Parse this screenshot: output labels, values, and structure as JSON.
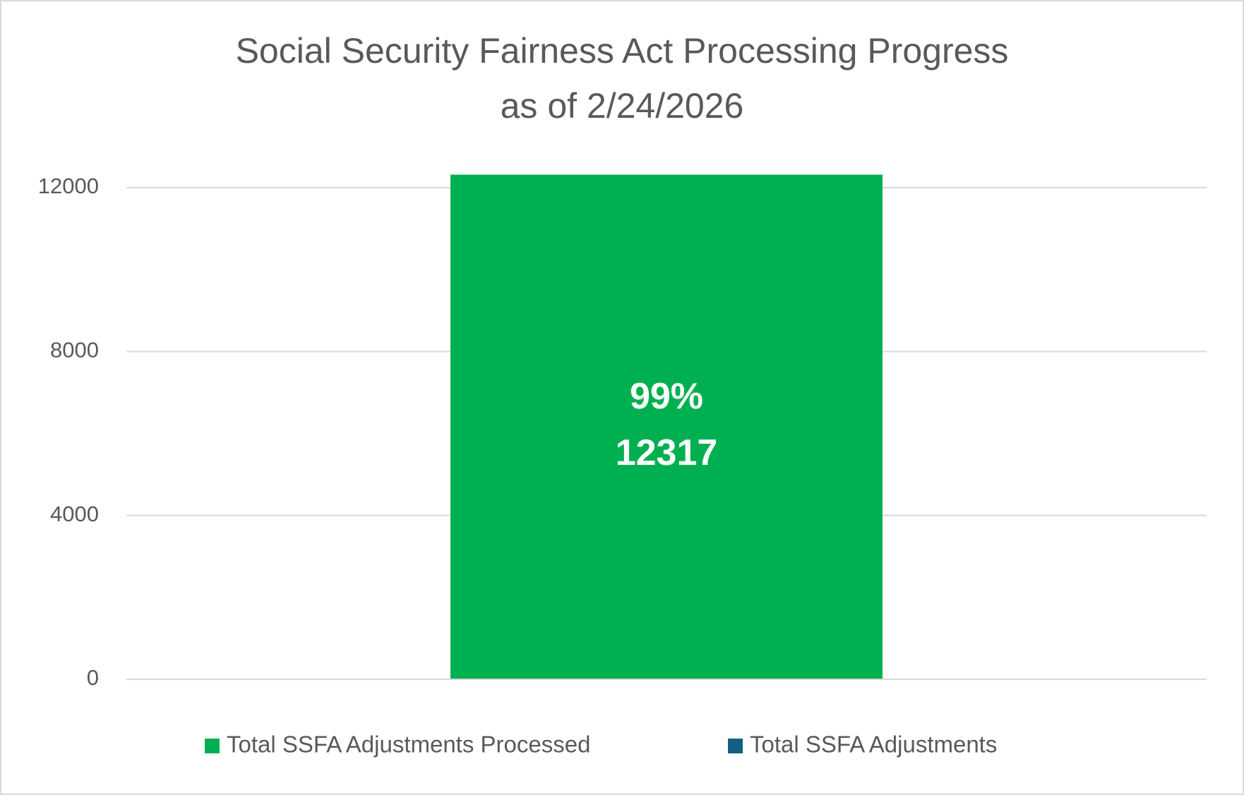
{
  "chart_data": {
    "type": "bar",
    "title": "Social Security Fairness Act Processing Progress",
    "subtitle": "as of 2/24/2026",
    "categories": [
      null
    ],
    "series": [
      {
        "name": "Total SSFA Adjustments Processed",
        "color": "#00b050",
        "values": [
          12317
        ],
        "percent_labels": [
          "99%"
        ]
      },
      {
        "name": "Total SSFA Adjustments",
        "color": "#156082",
        "values": [
          null
        ]
      }
    ],
    "ylim": [
      0,
      12500
    ],
    "yticks": [
      0,
      4000,
      8000,
      12000
    ],
    "grid": true,
    "legend": "bottom"
  }
}
